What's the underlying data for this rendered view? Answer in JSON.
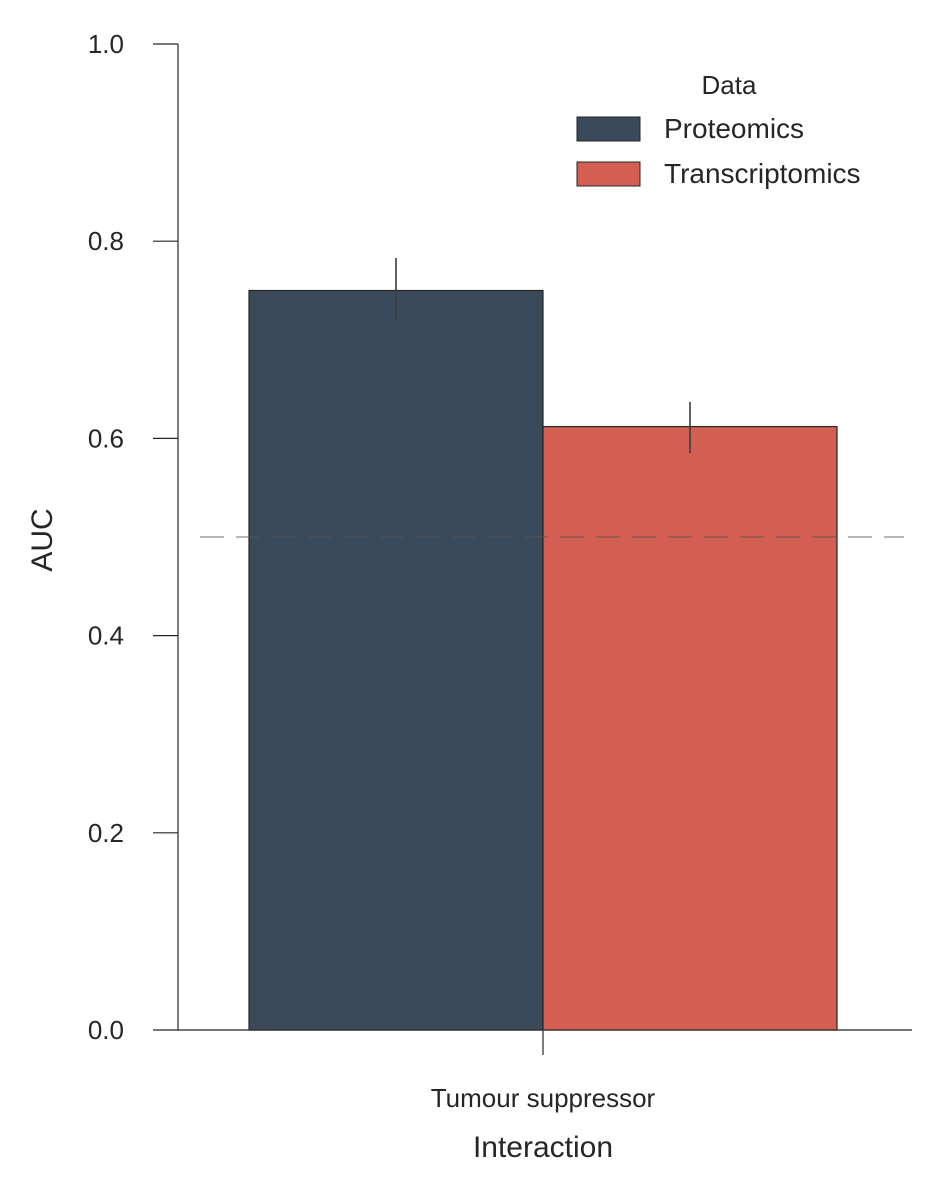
{
  "chart_data": {
    "type": "bar",
    "title": "",
    "xlabel": "Interaction",
    "ylabel": "AUC",
    "categories": [
      "Tumour suppressor"
    ],
    "series": [
      {
        "name": "Proteomics",
        "values": [
          0.75
        ],
        "error_low": [
          0.72
        ],
        "error_high": [
          0.783
        ],
        "color": "#3a4a5a"
      },
      {
        "name": "Transcriptomics",
        "values": [
          0.612
        ],
        "error_low": [
          0.585
        ],
        "error_high": [
          0.637
        ],
        "color": "#d25f52"
      }
    ],
    "ylim": [
      0,
      1.0
    ],
    "yticks": [
      "0.0",
      "0.2",
      "0.4",
      "0.6",
      "0.8",
      "1.0"
    ],
    "yticks_values": [
      0,
      0.2,
      0.4,
      0.6,
      0.8,
      1.0
    ],
    "reference_line": {
      "y": 0.5,
      "style": "dashed"
    },
    "grid": false,
    "legend": {
      "title": "Data",
      "placement": "top-right"
    }
  }
}
